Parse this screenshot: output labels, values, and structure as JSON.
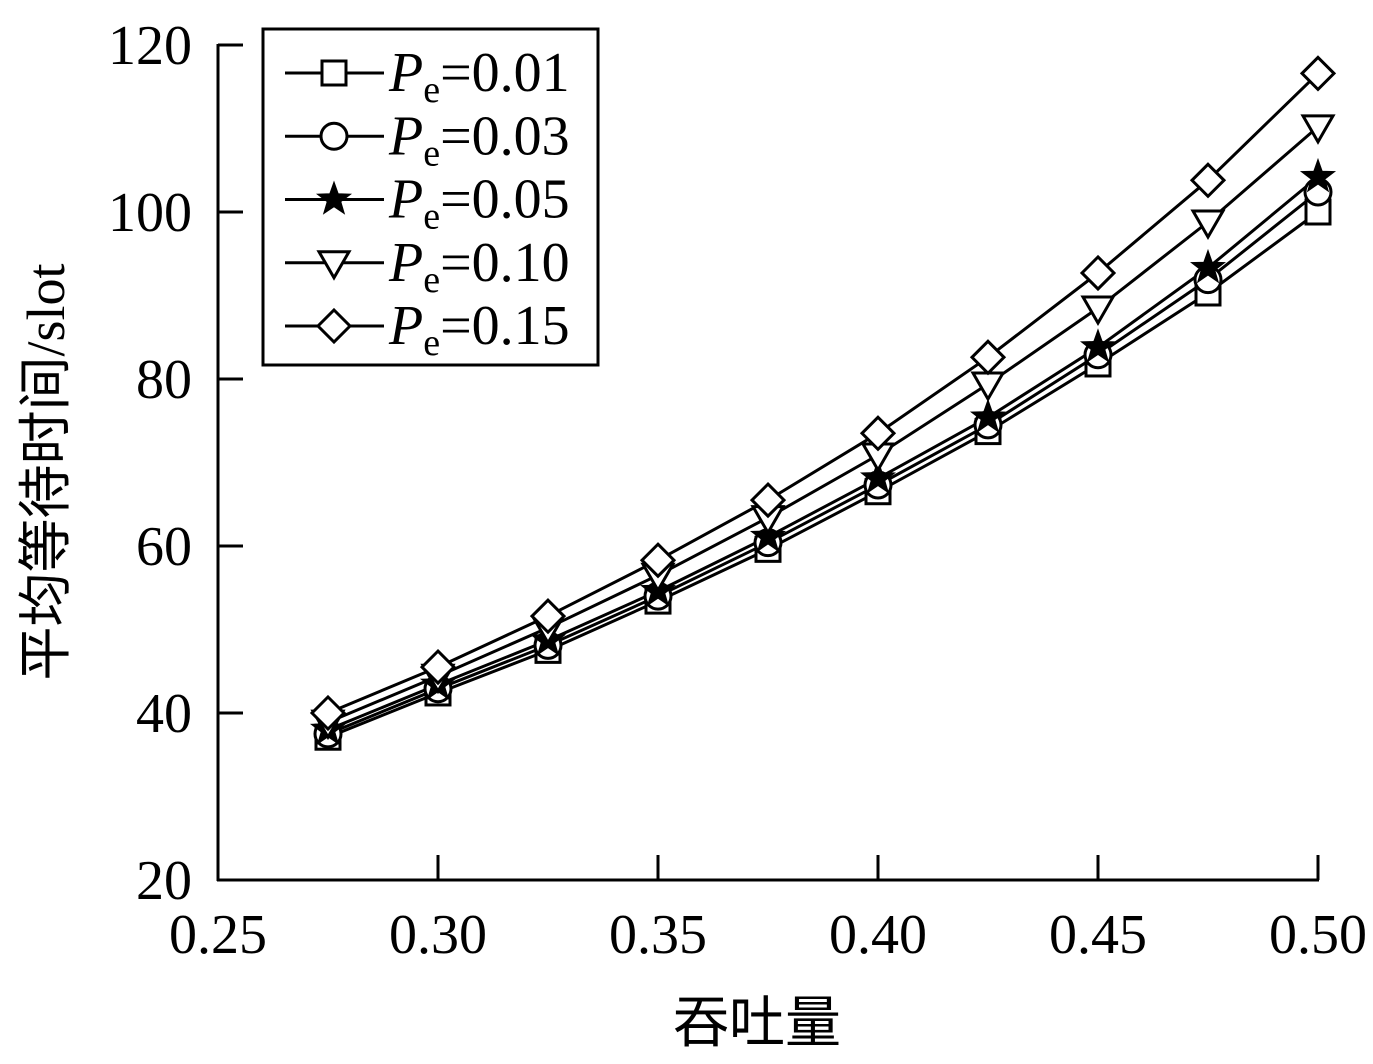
{
  "chart_data": {
    "type": "line",
    "xlabel": "吞吐量",
    "ylabel": "平均等待时间/slot",
    "xlim": [
      0.25,
      0.5
    ],
    "ylim": [
      20,
      120
    ],
    "xticks": [
      "0.25",
      "0.30",
      "0.35",
      "0.40",
      "0.45",
      "0.50"
    ],
    "yticks": [
      "20",
      "40",
      "60",
      "80",
      "100",
      "120"
    ],
    "grid": false,
    "legend": "top-left",
    "line_color": "#000000",
    "x": [
      0.275,
      0.3,
      0.325,
      0.35,
      0.375,
      0.4,
      0.425,
      0.45,
      0.475,
      0.5
    ],
    "series": [
      {
        "name": "Pe=0.01",
        "marker": "square",
        "values": [
          37.1,
          42.4,
          47.5,
          53.4,
          59.6,
          66.5,
          73.7,
          81.8,
          90.3,
          100.0
        ]
      },
      {
        "name": "Pe=0.03",
        "marker": "circle",
        "values": [
          37.5,
          42.9,
          48.1,
          54.0,
          60.4,
          67.3,
          74.5,
          82.9,
          91.9,
          102.4
        ]
      },
      {
        "name": "Pe=0.05",
        "marker": "star",
        "values": [
          38.0,
          43.4,
          48.7,
          54.6,
          61.1,
          68.1,
          75.4,
          83.8,
          93.3,
          104.2
        ]
      },
      {
        "name": "Pe=0.10",
        "marker": "triangle-down",
        "values": [
          38.9,
          44.4,
          50.2,
          56.5,
          63.4,
          70.9,
          79.4,
          88.5,
          98.8,
          110.2
        ]
      },
      {
        "name": "Pe=0.15",
        "marker": "diamond",
        "values": [
          40.0,
          45.5,
          51.6,
          58.3,
          65.5,
          73.5,
          82.6,
          92.7,
          103.8,
          116.6
        ]
      }
    ]
  }
}
